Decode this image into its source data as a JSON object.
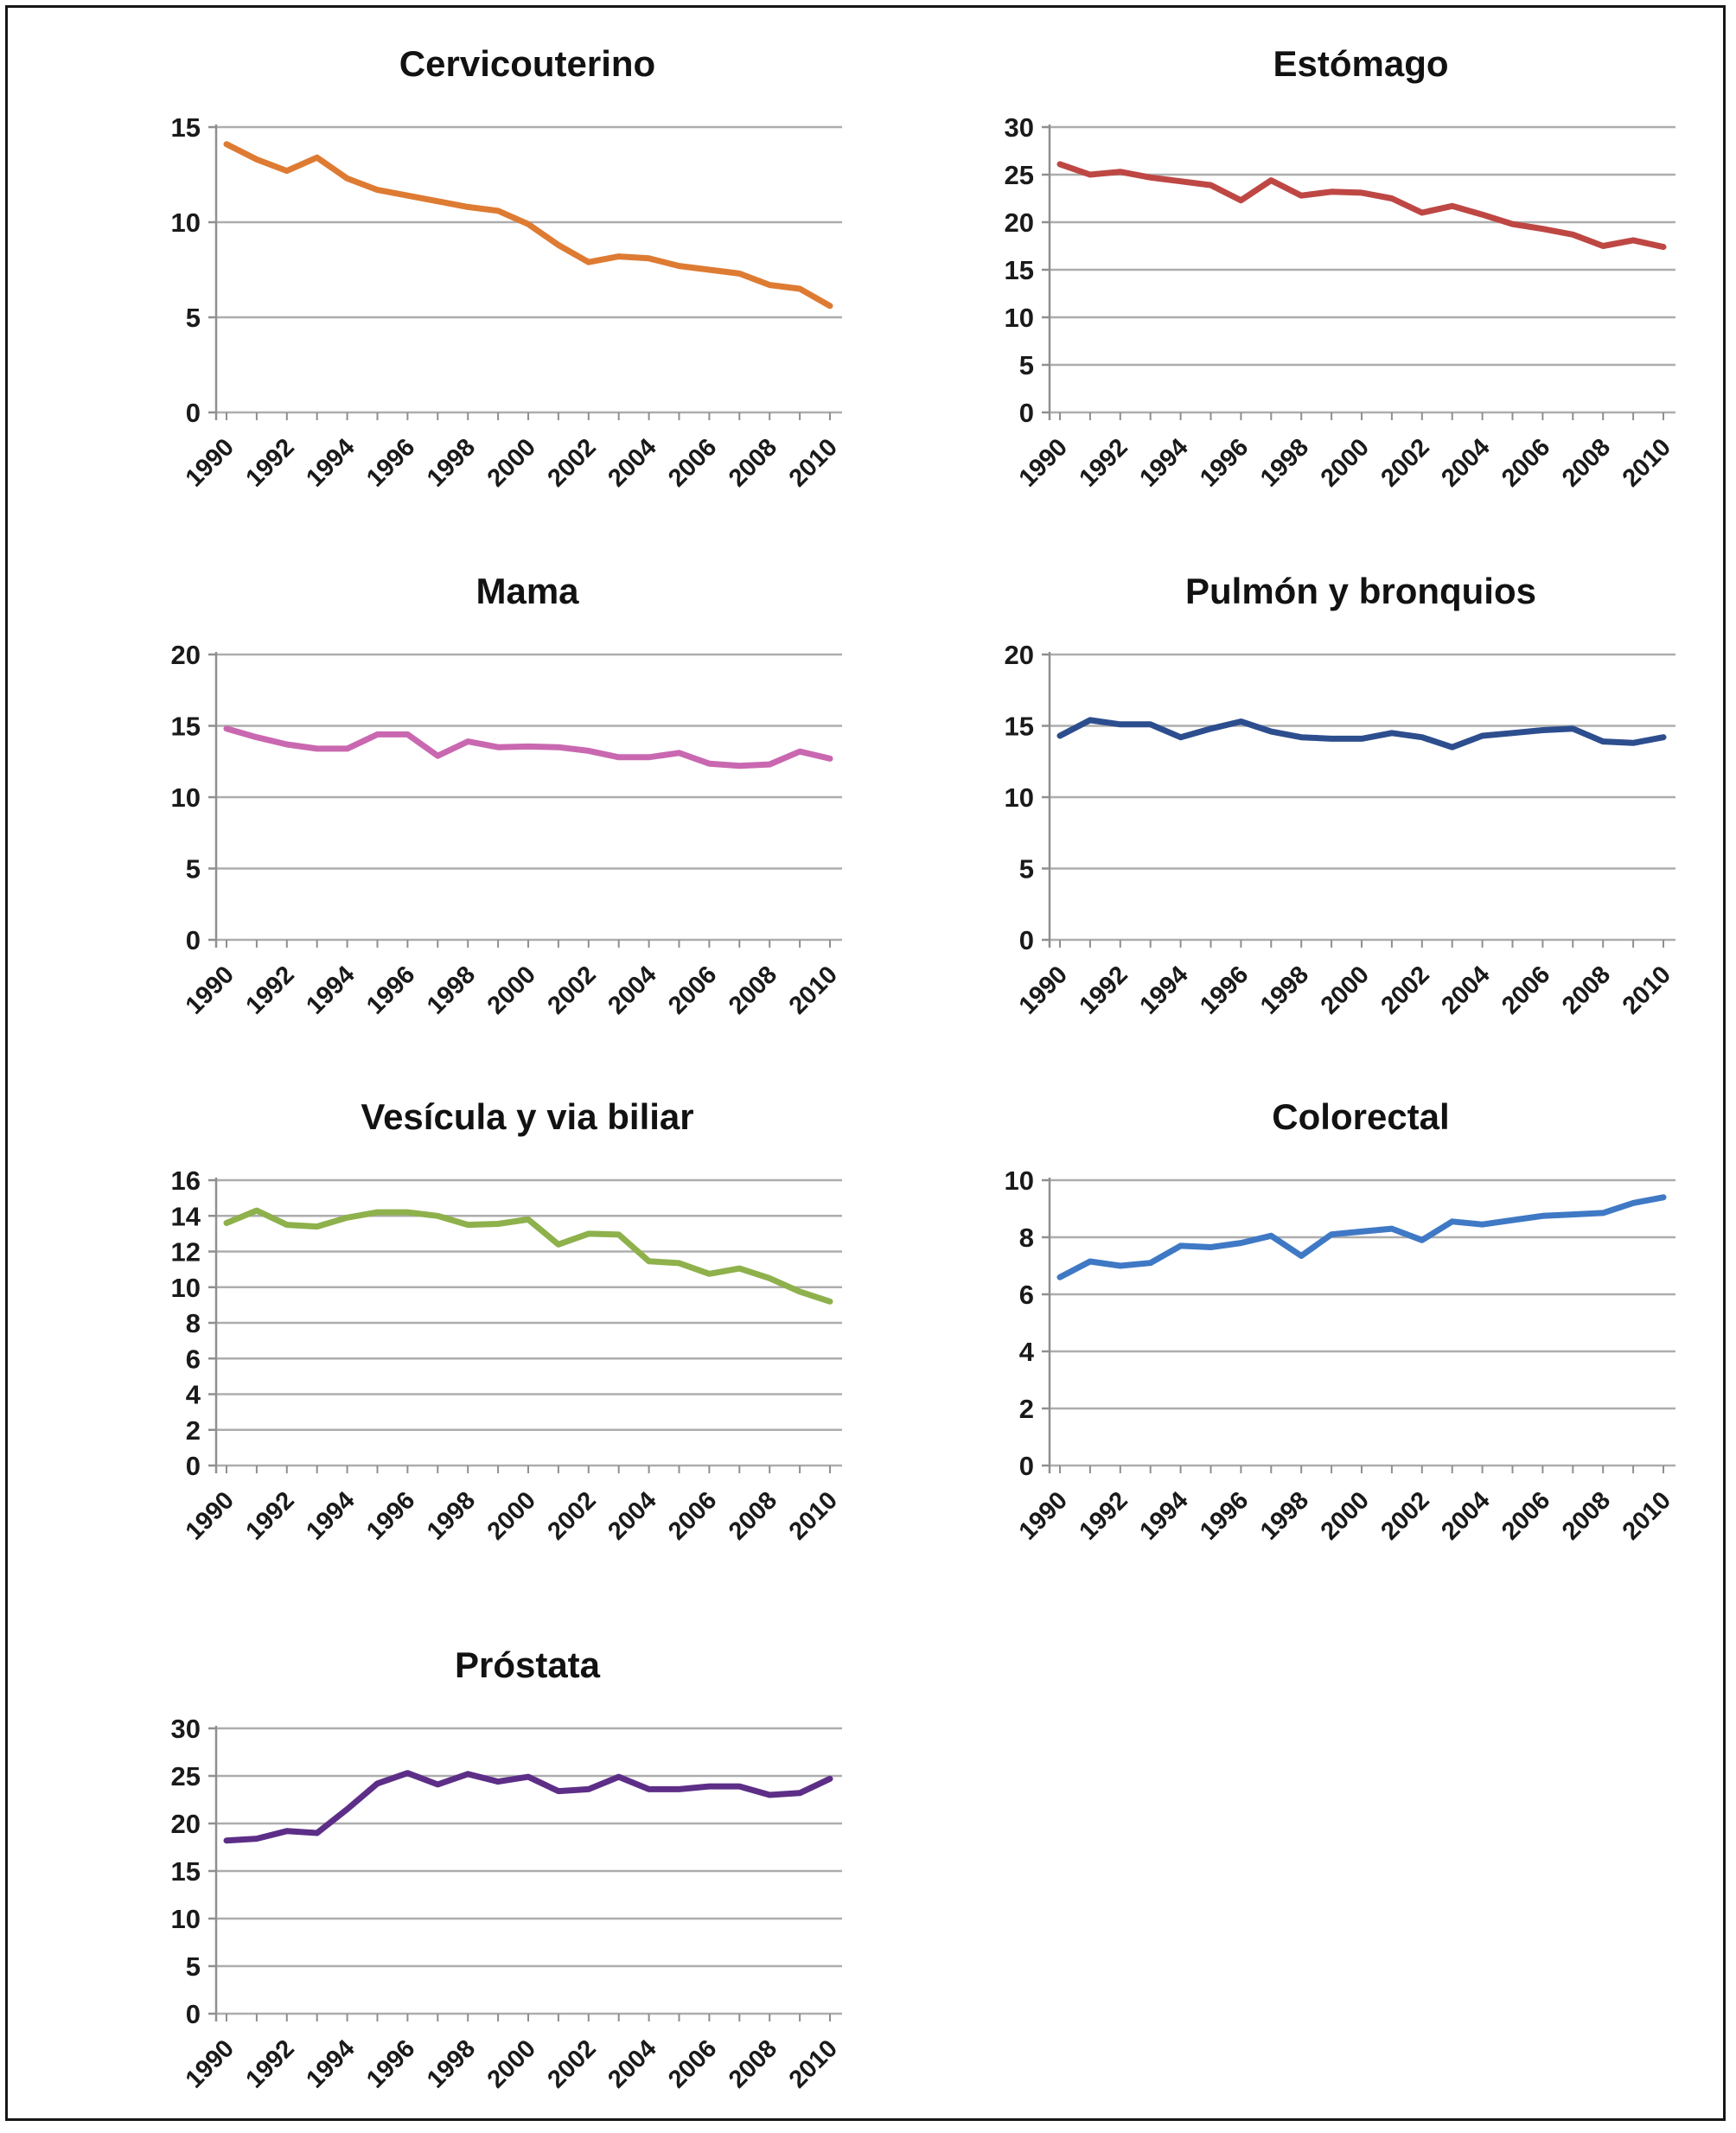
{
  "figure": {
    "background_color": "#ffffff",
    "border_color": "#161616",
    "grid_color": "#adadad",
    "axis_color": "#8f8f8f",
    "tick_label_color": "#1a1a1a",
    "title_color": "#121212"
  },
  "chart_data": {
    "type": "line",
    "layout": "2-column grid, 7 panels",
    "grid_on": true,
    "legend": "none",
    "x_years": [
      1990,
      1991,
      1992,
      1993,
      1994,
      1995,
      1996,
      1997,
      1998,
      1999,
      2000,
      2001,
      2002,
      2003,
      2004,
      2005,
      2006,
      2007,
      2008,
      2009,
      2010
    ],
    "x_tick_labels": [
      "1990",
      "1992",
      "1994",
      "1996",
      "1998",
      "2000",
      "2002",
      "2004",
      "2006",
      "2008",
      "2010"
    ],
    "x_label_every": 2,
    "charts": [
      {
        "title": "Cervicouterino",
        "color": "#de7b33",
        "ylim": [
          0,
          15
        ],
        "y_step": 5,
        "y_tick_labels": [
          "0",
          "5",
          "10",
          "15"
        ],
        "values": [
          14.1,
          13.3,
          12.7,
          13.4,
          12.3,
          11.7,
          11.4,
          11.1,
          10.8,
          10.6,
          9.9,
          8.8,
          7.9,
          8.2,
          8.1,
          7.7,
          7.5,
          7.3,
          6.7,
          6.5,
          5.6
        ]
      },
      {
        "title": "Estómago",
        "color": "#be4744",
        "ylim": [
          0,
          30
        ],
        "y_step": 5,
        "y_tick_labels": [
          "0",
          "5",
          "10",
          "15",
          "20",
          "25",
          "30"
        ],
        "values": [
          26.1,
          25.0,
          25.3,
          24.7,
          24.3,
          23.9,
          22.3,
          24.4,
          22.8,
          23.2,
          23.1,
          22.5,
          21.0,
          21.7,
          20.8,
          19.8,
          19.3,
          18.7,
          17.5,
          18.1,
          17.4
        ]
      },
      {
        "title": "Mama",
        "color": "#c968b0",
        "ylim": [
          0,
          20
        ],
        "y_step": 5,
        "y_tick_labels": [
          "0",
          "5",
          "10",
          "15",
          "20"
        ],
        "values": [
          14.8,
          14.2,
          13.7,
          13.4,
          13.4,
          14.4,
          14.4,
          12.9,
          13.9,
          13.5,
          13.55,
          13.5,
          13.25,
          12.8,
          12.8,
          13.1,
          12.35,
          12.2,
          12.3,
          13.2,
          12.7
        ]
      },
      {
        "title": "Pulmón y bronquios",
        "color": "#2d4e8e",
        "ylim": [
          0,
          20
        ],
        "y_step": 5,
        "y_tick_labels": [
          "0",
          "5",
          "10",
          "15",
          "20"
        ],
        "values": [
          14.3,
          15.4,
          15.1,
          15.1,
          14.2,
          14.8,
          15.3,
          14.6,
          14.2,
          14.1,
          14.1,
          14.5,
          14.2,
          13.5,
          14.3,
          14.5,
          14.7,
          14.8,
          13.9,
          13.8,
          14.2
        ]
      },
      {
        "title": "Vesícula y via biliar",
        "color": "#8eb14c",
        "ylim": [
          0,
          16
        ],
        "y_step": 2,
        "y_tick_labels": [
          "0",
          "2",
          "4",
          "6",
          "8",
          "10",
          "12",
          "14",
          "16"
        ],
        "values": [
          13.6,
          14.3,
          13.5,
          13.4,
          13.9,
          14.2,
          14.2,
          14.0,
          13.5,
          13.55,
          13.8,
          12.4,
          13.0,
          12.95,
          11.45,
          11.35,
          10.75,
          11.05,
          10.5,
          9.75,
          9.2
        ]
      },
      {
        "title": "Colorectal",
        "color": "#3f79c5",
        "ylim": [
          0,
          10
        ],
        "y_step": 2,
        "y_tick_labels": [
          "0",
          "2",
          "4",
          "6",
          "8",
          "10"
        ],
        "values": [
          6.6,
          7.15,
          7.0,
          7.1,
          7.7,
          7.65,
          7.8,
          8.05,
          7.35,
          8.1,
          8.2,
          8.3,
          7.9,
          8.55,
          8.45,
          8.6,
          8.75,
          8.8,
          8.85,
          9.2,
          9.4
        ]
      },
      {
        "title": "Próstata",
        "color": "#5d2e87",
        "ylim": [
          0,
          30
        ],
        "y_step": 5,
        "y_tick_labels": [
          "0",
          "5",
          "10",
          "15",
          "20",
          "25",
          "30"
        ],
        "values": [
          18.2,
          18.4,
          19.2,
          19.0,
          21.5,
          24.2,
          25.3,
          24.1,
          25.2,
          24.4,
          24.9,
          23.4,
          23.6,
          24.9,
          23.6,
          23.6,
          23.9,
          23.9,
          23.0,
          23.2,
          24.7
        ]
      }
    ]
  }
}
